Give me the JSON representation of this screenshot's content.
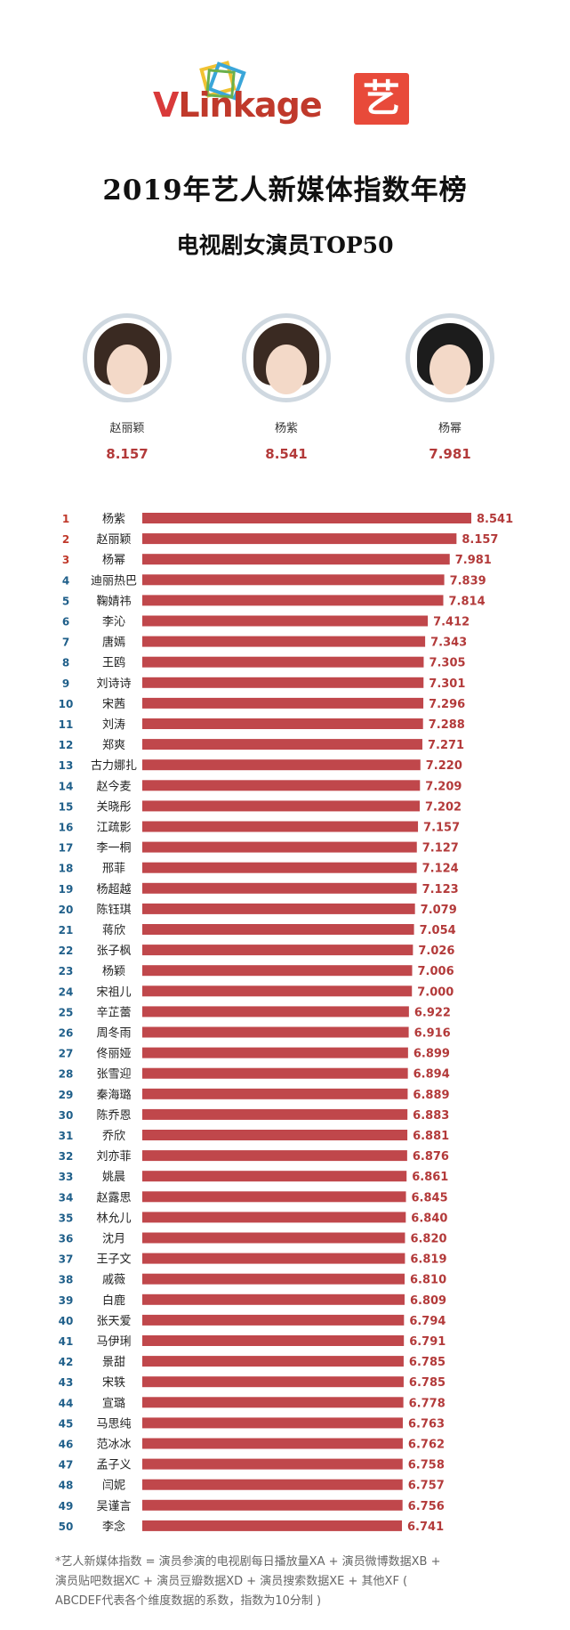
{
  "logo": {
    "brand": "VLinkage",
    "partner_char": "艺"
  },
  "header": {
    "title": "2019年艺人新媒体指数年榜",
    "subtitle": "电视剧女演员TOP50"
  },
  "podium": [
    {
      "name": "赵丽颖",
      "score": "8.157"
    },
    {
      "name": "杨紫",
      "score": "8.541"
    },
    {
      "name": "杨幂",
      "score": "7.981"
    }
  ],
  "chart_data": {
    "type": "bar",
    "orientation": "horizontal",
    "bar_color": "#c0474b",
    "rank_color_top3": "#c0392b",
    "categories": [
      "杨紫",
      "赵丽颖",
      "杨幂",
      "迪丽热巴",
      "鞠婧祎",
      "李沁",
      "唐嫣",
      "王鸥",
      "刘诗诗",
      "宋茜",
      "刘涛",
      "郑爽",
      "古力娜扎",
      "赵今麦",
      "关晓彤",
      "江疏影",
      "李一桐",
      "邢菲",
      "杨超越",
      "陈钰琪",
      "蒋欣",
      "张子枫",
      "杨颖",
      "宋祖儿",
      "辛芷蕾",
      "周冬雨",
      "佟丽娅",
      "张雪迎",
      "秦海璐",
      "陈乔恩",
      "乔欣",
      "刘亦菲",
      "姚晨",
      "赵露思",
      "林允儿",
      "沈月",
      "王子文",
      "戚薇",
      "白鹿",
      "张天爱",
      "马伊琍",
      "景甜",
      "宋轶",
      "宣璐",
      "马思纯",
      "范冰冰",
      "孟子义",
      "闫妮",
      "吴谨言",
      "李念"
    ],
    "values": [
      8.541,
      8.157,
      7.981,
      7.839,
      7.814,
      7.412,
      7.343,
      7.305,
      7.301,
      7.296,
      7.288,
      7.271,
      7.22,
      7.209,
      7.202,
      7.157,
      7.127,
      7.124,
      7.123,
      7.079,
      7.054,
      7.026,
      7.006,
      7.0,
      6.922,
      6.916,
      6.899,
      6.894,
      6.889,
      6.883,
      6.881,
      6.876,
      6.861,
      6.845,
      6.84,
      6.82,
      6.819,
      6.81,
      6.809,
      6.794,
      6.791,
      6.785,
      6.785,
      6.778,
      6.763,
      6.762,
      6.758,
      6.757,
      6.756,
      6.741
    ],
    "labels": [
      "8.541",
      "8.157",
      "7.981",
      "7.839",
      "7.814",
      "7.412",
      "7.343",
      "7.305",
      "7.301",
      "7.296",
      "7.288",
      "7.271",
      "7.220",
      "7.209",
      "7.202",
      "7.157",
      "7.127",
      "7.124",
      "7.123",
      "7.079",
      "7.054",
      "7.026",
      "7.006",
      "7.000",
      "6.922",
      "6.916",
      "6.899",
      "6.894",
      "6.889",
      "6.883",
      "6.881",
      "6.876",
      "6.861",
      "6.845",
      "6.840",
      "6.820",
      "6.819",
      "6.810",
      "6.809",
      "6.794",
      "6.791",
      "6.785",
      "6.785",
      "6.778",
      "6.763",
      "6.762",
      "6.758",
      "6.757",
      "6.756",
      "6.741"
    ],
    "title": "",
    "xlabel": "",
    "ylabel": ""
  },
  "footnote": {
    "line1": "*艺人新媒体指数 = 演员参演的电视剧每日播放量XA + 演员微博数据XB +",
    "line2": "演员贴吧数据XC + 演员豆瓣数据XD + 演员搜索数据XE + 其他XF (",
    "line3": "ABCDEF代表各个维度数据的系数，指数为10分制 )"
  }
}
